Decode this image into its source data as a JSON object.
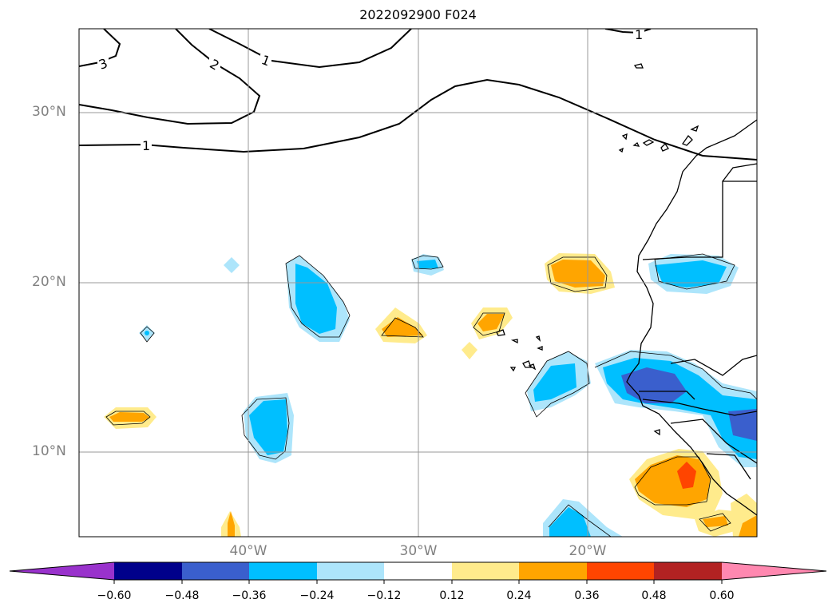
{
  "title": "2022092900 F024",
  "lat_labels": [
    "30°N",
    "20°N",
    "10°N"
  ],
  "lon_labels": [
    "40°W",
    "30°W",
    "20°W"
  ],
  "contour_labels": [
    "3",
    "2",
    "1",
    "1",
    "1"
  ],
  "colorbar": {
    "ticks": [
      "−0.60",
      "−0.48",
      "−0.36",
      "−0.24",
      "−0.12",
      "0.12",
      "0.24",
      "0.36",
      "0.48",
      "0.60"
    ],
    "colors": {
      "under": "#9932cc",
      "c1": "#00008b",
      "c2": "#3a5fcd",
      "c3": "#00bfff",
      "c4": "#ade5fb",
      "c5": "#ffffff",
      "c6": "#ffeb8c",
      "c7": "#ffa500",
      "c8": "#ff4500",
      "c9": "#b22222",
      "over": "#ff88b0"
    }
  }
}
